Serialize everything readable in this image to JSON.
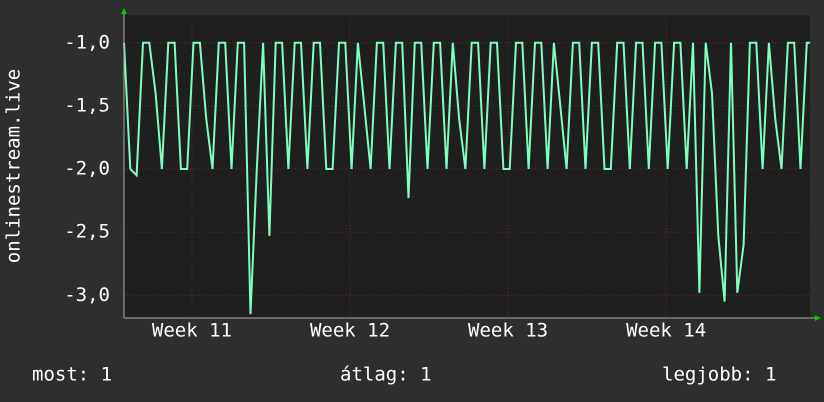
{
  "chart_data": {
    "type": "line",
    "y_label": "onlinestream.live",
    "x": [
      10.57,
      10.61,
      10.65,
      10.69,
      10.73,
      10.77,
      10.81,
      10.85,
      10.89,
      10.93,
      10.97,
      11.01,
      11.05,
      11.09,
      11.13,
      11.17,
      11.21,
      11.25,
      11.29,
      11.33,
      11.37,
      11.41,
      11.45,
      11.49,
      11.53,
      11.57,
      11.61,
      11.65,
      11.69,
      11.73,
      11.77,
      11.81,
      11.85,
      11.89,
      11.93,
      11.97,
      12.01,
      12.05,
      12.09,
      12.13,
      12.17,
      12.21,
      12.25,
      12.29,
      12.33,
      12.37,
      12.41,
      12.45,
      12.49,
      12.53,
      12.57,
      12.61,
      12.65,
      12.69,
      12.73,
      12.77,
      12.81,
      12.85,
      12.89,
      12.93,
      12.97,
      13.01,
      13.05,
      13.09,
      13.13,
      13.17,
      13.21,
      13.25,
      13.29,
      13.33,
      13.37,
      13.41,
      13.45,
      13.49,
      13.53,
      13.57,
      13.61,
      13.65,
      13.69,
      13.73,
      13.77,
      13.81,
      13.85,
      13.89,
      13.93,
      13.97,
      14.01,
      14.05,
      14.09,
      14.13,
      14.17,
      14.21,
      14.25,
      14.29,
      14.33,
      14.37,
      14.41,
      14.45,
      14.49,
      14.53,
      14.57,
      14.61,
      14.65,
      14.69,
      14.73,
      14.77,
      14.81,
      14.85,
      14.89,
      14.91
    ],
    "series": [
      {
        "color": "#7fffbf",
        "values": [
          -1,
          -2,
          -2.05,
          -1,
          -1,
          -1.4,
          -2,
          -1,
          -1,
          -2,
          -2,
          -1,
          -1,
          -1.6,
          -2,
          -1,
          -1,
          -2,
          -1,
          -1,
          -3.15,
          -2,
          -1,
          -2.53,
          -1,
          -1,
          -2,
          -1,
          -1,
          -2,
          -1,
          -1,
          -2,
          -2,
          -1,
          -1,
          -2,
          -1,
          -1.5,
          -2,
          -1,
          -1,
          -2,
          -1,
          -1,
          -2.23,
          -1,
          -1,
          -2,
          -1,
          -1,
          -2,
          -1,
          -1.6,
          -2,
          -1,
          -1,
          -2,
          -1,
          -1,
          -2,
          -2,
          -1,
          -1,
          -2,
          -1,
          -1,
          -2,
          -1,
          -1.5,
          -2,
          -1,
          -1,
          -2,
          -1,
          -1,
          -2,
          -2,
          -1,
          -1,
          -2,
          -1,
          -1,
          -2,
          -1,
          -1,
          -2,
          -1,
          -1,
          -2,
          -1,
          -2.98,
          -1,
          -1.4,
          -2.53,
          -3.05,
          -1,
          -2.98,
          -2.6,
          -1,
          -1,
          -2,
          -1,
          -1.6,
          -2,
          -1,
          -1,
          -2,
          -1,
          -1
        ]
      }
    ],
    "xlim": [
      10.57,
      14.91
    ],
    "xticks": [
      {
        "value": 11,
        "label": "Week 11"
      },
      {
        "value": 12,
        "label": "Week 12"
      },
      {
        "value": 13,
        "label": "Week 13"
      },
      {
        "value": 14,
        "label": "Week 14"
      }
    ],
    "ylim": [
      -3.18,
      -0.78
    ],
    "yticks": [
      {
        "value": -3,
        "label": "-3,0"
      },
      {
        "value": -2.5,
        "label": "-2,5"
      },
      {
        "value": -2,
        "label": "-2,0"
      },
      {
        "value": -1.5,
        "label": "-1,5"
      },
      {
        "value": -1,
        "label": "-1,0"
      }
    ],
    "grid": true,
    "footer": [
      "most: 1",
      "átlag: 1",
      "legjobb: 1"
    ]
  }
}
